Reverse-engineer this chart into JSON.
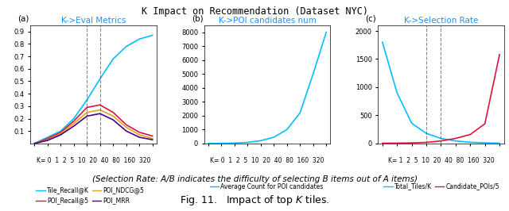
{
  "title": "K Impact on Recommendation (Dataset NYC)",
  "subplot_a_title": "K->Eval Metrics",
  "subplot_b_title": "K->POI candidates num",
  "subplot_c_title": "K->Selection Rate",
  "x_labels_a": [
    "0",
    "1",
    "2",
    "5",
    "10",
    "20",
    "40",
    "80",
    "160",
    "320"
  ],
  "x_labels_b": [
    "0",
    "1",
    "2",
    "5",
    "10",
    "20",
    "40",
    "80",
    "160",
    "320"
  ],
  "x_labels_c": [
    "1",
    "2",
    "5",
    "10",
    "20",
    "40",
    "80",
    "160",
    "320"
  ],
  "tile_recall_k": [
    0.0,
    0.05,
    0.1,
    0.2,
    0.35,
    0.52,
    0.68,
    0.78,
    0.84,
    0.87
  ],
  "poi_recall_5": [
    0.0,
    0.04,
    0.09,
    0.18,
    0.29,
    0.31,
    0.25,
    0.15,
    0.09,
    0.06
  ],
  "poi_ndcg_5": [
    0.0,
    0.03,
    0.08,
    0.16,
    0.25,
    0.27,
    0.22,
    0.13,
    0.07,
    0.04
  ],
  "poi_mrr": [
    0.0,
    0.025,
    0.07,
    0.14,
    0.22,
    0.24,
    0.19,
    0.1,
    0.05,
    0.03
  ],
  "avg_poi_candidates": [
    0,
    15,
    30,
    80,
    200,
    450,
    1000,
    2200,
    5000,
    8000
  ],
  "total_tiles_k": [
    1800,
    900,
    360,
    180,
    90,
    45,
    22,
    11,
    6
  ],
  "candidate_pois_5": [
    5,
    6,
    10,
    20,
    45,
    90,
    160,
    350,
    1580
  ],
  "color_tile_recall": "#00BFFF",
  "color_poi_recall": "#DC143C",
  "color_poi_ndcg": "#DAA520",
  "color_poi_mrr": "#4B0082",
  "color_avg_count": "#00BFFF",
  "color_total_tiles": "#00BFFF",
  "color_candidate_pois": "#DC143C",
  "vline_color": "#555555",
  "caption_line1": "(Selection Rate: A/B indicates the difficulty of selecting B items out of A items)",
  "caption_line2": "Fig. 11.   Impact of top $K$ tiles.",
  "font_size_title": 8,
  "font_size_subplot_title": 7,
  "font_size_tick": 6,
  "font_size_legend": 5.5,
  "font_size_caption": 8
}
